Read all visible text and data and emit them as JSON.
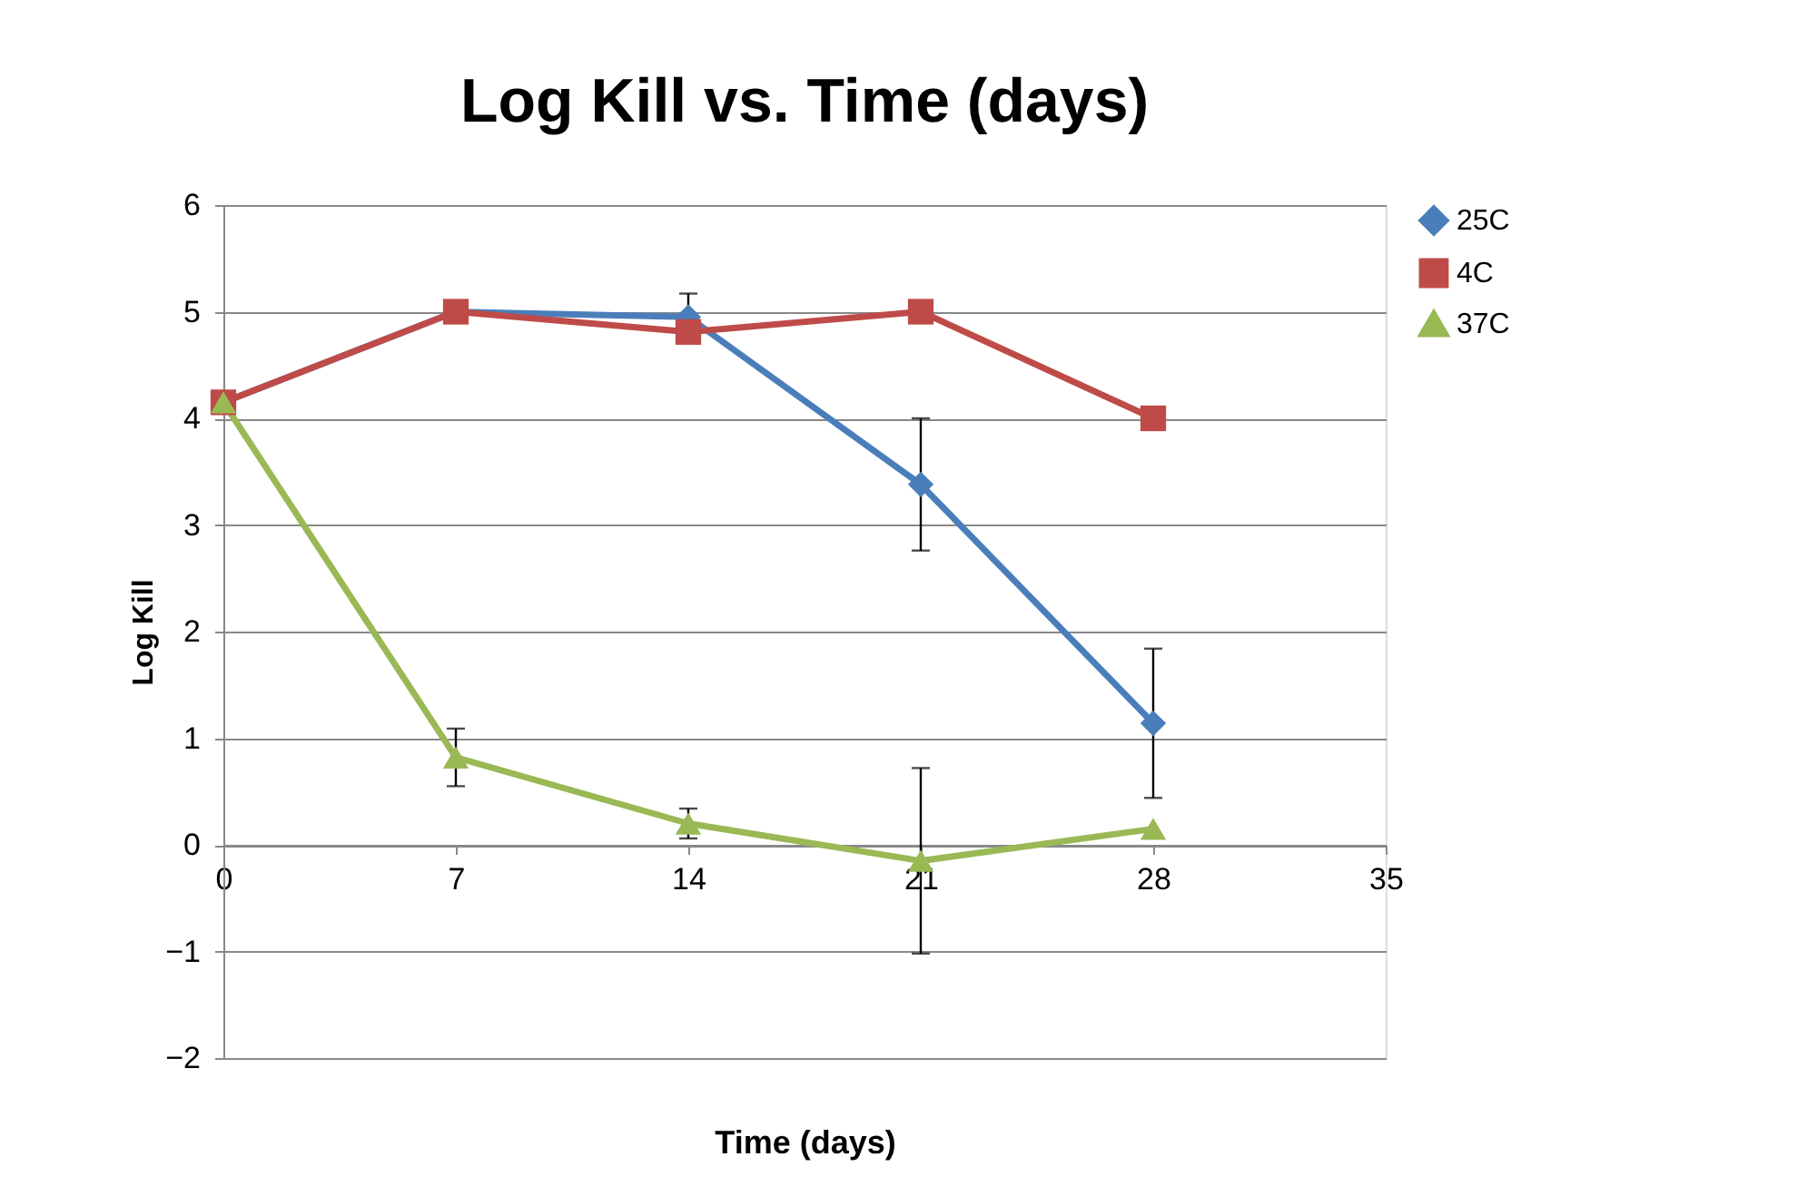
{
  "chart_data": {
    "type": "line",
    "title": "Log Kill vs. Time (days)",
    "xlabel": "Time (days)",
    "ylabel": "Log Kill",
    "x": [
      0,
      7,
      14,
      21,
      28
    ],
    "xlim": [
      0,
      35
    ],
    "xticks": [
      0,
      7,
      14,
      21,
      28,
      35
    ],
    "ylim": [
      -2,
      6
    ],
    "yticks": [
      -2,
      -1,
      0,
      1,
      2,
      3,
      4,
      5,
      6
    ],
    "grid": "y",
    "legend": "right",
    "line_style": "solid",
    "series": [
      {
        "name": "25C",
        "color": "#4a7ebb",
        "marker": "diamond",
        "values": [
          4.15,
          5.0,
          4.95,
          3.38,
          1.14
        ],
        "errors": [
          null,
          null,
          0.22,
          0.62,
          0.7
        ]
      },
      {
        "name": "4C",
        "color": "#be4b48",
        "marker": "square",
        "values": [
          4.15,
          5.0,
          4.81,
          5.0,
          4.0
        ]
      },
      {
        "name": "37C",
        "color": "#98b954",
        "marker": "triangle",
        "values": [
          4.15,
          0.82,
          0.2,
          -0.15,
          0.15
        ],
        "errors": [
          null,
          0.27,
          0.14,
          0.87,
          null
        ]
      }
    ]
  }
}
